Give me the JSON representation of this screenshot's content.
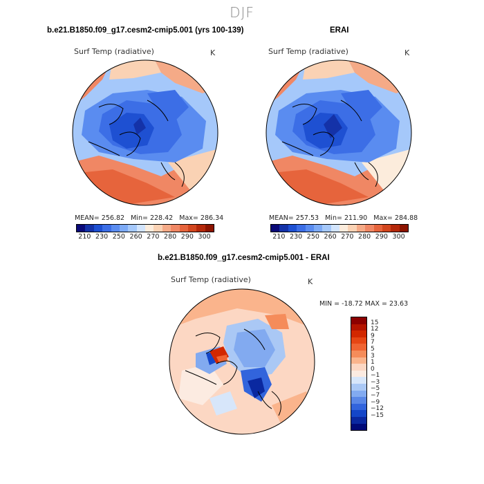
{
  "figure": {
    "season": "DJF",
    "left_panel": {
      "title": "b.e21.B1850.f09_g17.cesm2-cmip5.001 (yrs 100-139)",
      "variable": "Surf Temp (radiative)",
      "units": "K",
      "stats": {
        "mean_label": "MEAN=",
        "mean": "256.82",
        "min_label": "Min=",
        "min": "228.42",
        "max_label": "Max=",
        "max": "286.34"
      }
    },
    "right_panel": {
      "title": "ERAI",
      "variable": "Surf Temp (radiative)",
      "units": "K",
      "stats": {
        "mean_label": "MEAN=",
        "mean": "257.53",
        "min_label": "Min=",
        "min": "211.90",
        "max_label": "Max=",
        "max": "284.88"
      }
    },
    "diff_panel": {
      "title": "b.e21.B1850.f09_g17.cesm2-cmip5.001 - ERAI",
      "variable": "Surf Temp (radiative)",
      "units": "K",
      "minmax": "MIN = -18.72 MAX =  23.63"
    },
    "abs_colorbar": {
      "ticks": [
        "210",
        "230",
        "250",
        "260",
        "270",
        "280",
        "290",
        "300"
      ],
      "colors": [
        "#0a0a78",
        "#1432a8",
        "#1e50d2",
        "#3c6ee6",
        "#5a8cf0",
        "#7daaf5",
        "#a5c8fa",
        "#d2e4fc",
        "#fcecdc",
        "#fad2b4",
        "#f5aa87",
        "#f08764",
        "#e6643c",
        "#d2461e",
        "#b4280a",
        "#8c1400"
      ]
    },
    "diff_colorbar": {
      "labels": [
        "15",
        "12",
        "9",
        "7",
        "5",
        "3",
        "1",
        "0",
        "−1",
        "−3",
        "−5",
        "−7",
        "−9",
        "−12",
        "−15"
      ],
      "colors": [
        "#8c0000",
        "#b41400",
        "#d22800",
        "#e64614",
        "#f06432",
        "#f58c5a",
        "#fab48c",
        "#fcd7c3",
        "#fcebe1",
        "#d7e6fa",
        "#aac8f5",
        "#82aaf0",
        "#5a87e6",
        "#3264dc",
        "#1446c8",
        "#0a28a0",
        "#000a78"
      ]
    }
  }
}
